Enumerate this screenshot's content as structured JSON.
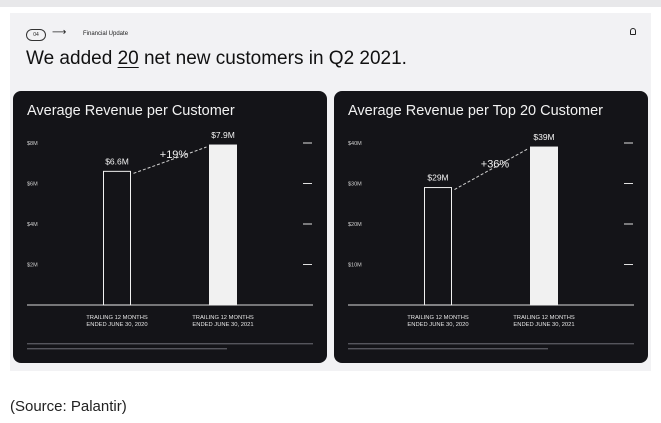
{
  "slide": {
    "number": "04",
    "section": "Financial Update",
    "headline_pre": "We added ",
    "headline_num": "20",
    "headline_post": " net new customers in Q2 2021."
  },
  "source": "(Source: Palantir)",
  "chart_data": [
    {
      "type": "bar",
      "title": "Average Revenue per Customer",
      "categories": [
        "TRAILING 12 MONTHS ENDED JUNE 30, 2020",
        "TRAILING 12 MONTHS ENDED JUNE 30, 2021"
      ],
      "values": [
        6.6,
        7.9
      ],
      "value_labels": [
        "$6.6M",
        "$7.9M"
      ],
      "change_label": "+19%",
      "yticks": [
        2,
        4,
        6,
        8
      ],
      "ytick_labels": [
        "$2M",
        "$4M",
        "$6M",
        "$8M"
      ],
      "ylim": [
        0,
        8
      ],
      "bar_colors": [
        "#141418",
        "#f1f1f1"
      ],
      "grid": false
    },
    {
      "type": "bar",
      "title": "Average Revenue per Top 20 Customer",
      "categories": [
        "TRAILING 12 MONTHS ENDED JUNE 30, 2020",
        "TRAILING 12 MONTHS ENDED JUNE 30, 2021"
      ],
      "values": [
        29,
        39
      ],
      "value_labels": [
        "$29M",
        "$39M"
      ],
      "change_label": "+36%",
      "yticks": [
        10,
        20,
        30,
        40
      ],
      "ytick_labels": [
        "$10M",
        "$20M",
        "$30M",
        "$40M"
      ],
      "ylim": [
        0,
        40
      ],
      "bar_colors": [
        "#141418",
        "#f1f1f1"
      ],
      "grid": false
    }
  ]
}
